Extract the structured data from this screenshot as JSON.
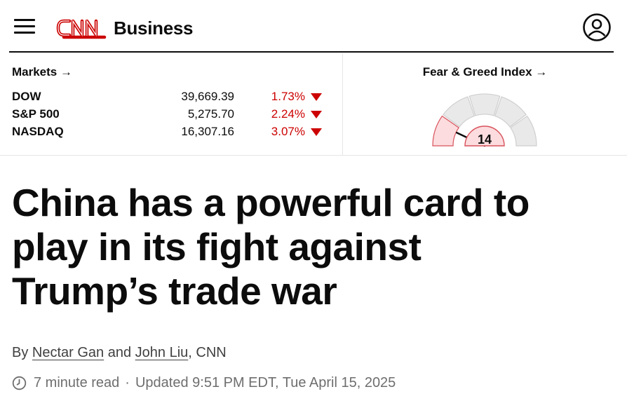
{
  "header": {
    "menu_icon": "hamburger-menu-icon",
    "logo_text": "CNN",
    "section": "Business",
    "account_icon": "user-account-icon",
    "brand_color": "#cc0000"
  },
  "markets": {
    "title": "Markets →",
    "rows": [
      {
        "name": "DOW",
        "value": "39,669.39",
        "change": "1.73%",
        "direction": "down"
      },
      {
        "name": "S&P 500",
        "value": "5,275.70",
        "change": "2.24%",
        "direction": "down"
      },
      {
        "name": "NASDAQ",
        "value": "16,307.16",
        "change": "3.07%",
        "direction": "down"
      }
    ],
    "down_color": "#cc0000"
  },
  "fear_greed": {
    "title": "Fear & Greed Index →",
    "value": "14",
    "level": 14,
    "scale_max": 100
  },
  "article": {
    "headline_line1": "China has a powerful card to",
    "headline_line2": "play in its fight against",
    "headline_line3": "Trump’s trade war",
    "by": "By",
    "author1": "Nectar Gan",
    "and": "and",
    "author2": "John Liu",
    "outlet": ", CNN",
    "read_time": "7 minute read",
    "separator": "·",
    "updated": "Updated 9:51 PM EDT, Tue April 15, 2025",
    "clock_icon": "clock-icon"
  }
}
